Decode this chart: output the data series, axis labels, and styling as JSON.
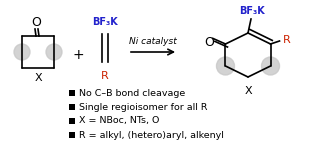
{
  "bg_color": "#ffffff",
  "bullet_lines": [
    "No C–B bond cleavage",
    "Single regioisomer for all R",
    "X = NBoc, NTs, O",
    "R = alkyl, (hetero)aryl, alkenyl"
  ],
  "arrow_text": "Ni catalyst",
  "bf3k_color": "#2222cc",
  "r_color": "#cc2200",
  "gray_circle_color": "#c8c8c8",
  "black_color": "#000000",
  "bullet_fontsize": 6.8,
  "label_fontsize": 7.5,
  "small_fontsize": 6.5
}
